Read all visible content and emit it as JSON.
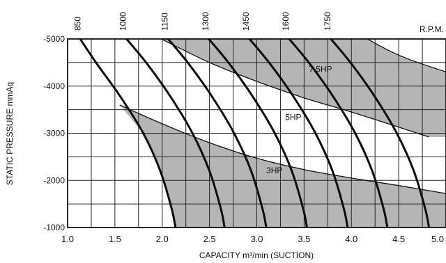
{
  "chart_data": {
    "type": "line",
    "xlabel": "CAPACITY m³/min (SUCTION)",
    "ylabel": "STATIC PRESSURE mmAq",
    "xlim": [
      1.0,
      5.0
    ],
    "ylim": [
      -1000,
      -5000
    ],
    "x_ticks": [
      "1.0",
      "1.5",
      "2.0",
      "2.5",
      "3.0",
      "3.5",
      "4.0",
      "4.5",
      "5.0"
    ],
    "y_ticks": [
      "-5000",
      "-4000",
      "-3000",
      "-2000",
      "-1000"
    ],
    "grid": true,
    "top_axis_label": "R.P.M.",
    "series": [
      {
        "name": "850",
        "x": [
          1.1,
          1.3,
          1.55,
          1.8,
          1.98,
          2.1,
          2.14
        ],
        "y": [
          -5100,
          -4500,
          -3800,
          -3000,
          -2200,
          -1400,
          -1000
        ]
      },
      {
        "name": "1000",
        "x": [
          1.58,
          1.83,
          2.08,
          2.32,
          2.5,
          2.62,
          2.66
        ],
        "y": [
          -5100,
          -4500,
          -3800,
          -3000,
          -2200,
          -1400,
          -1000
        ]
      },
      {
        "name": "1150",
        "x": [
          2.02,
          2.27,
          2.52,
          2.76,
          2.94,
          3.06,
          3.1
        ],
        "y": [
          -5100,
          -4500,
          -3800,
          -3000,
          -2200,
          -1400,
          -1000
        ]
      },
      {
        "name": "1300",
        "x": [
          2.45,
          2.7,
          2.95,
          3.19,
          3.37,
          3.49,
          3.53
        ],
        "y": [
          -5100,
          -4500,
          -3800,
          -3000,
          -2200,
          -1400,
          -1000
        ]
      },
      {
        "name": "1450",
        "x": [
          2.88,
          3.13,
          3.38,
          3.62,
          3.8,
          3.92,
          3.96
        ],
        "y": [
          -5100,
          -4500,
          -3800,
          -3000,
          -2200,
          -1400,
          -1000
        ]
      },
      {
        "name": "1600",
        "x": [
          3.3,
          3.55,
          3.8,
          4.04,
          4.22,
          4.34,
          4.38
        ],
        "y": [
          -5100,
          -4500,
          -3800,
          -3000,
          -2200,
          -1400,
          -1000
        ]
      },
      {
        "name": "1750",
        "x": [
          3.74,
          3.99,
          4.24,
          4.48,
          4.66,
          4.78,
          4.82
        ],
        "y": [
          -5100,
          -4500,
          -3800,
          -3000,
          -2200,
          -1400,
          -1000
        ]
      }
    ],
    "power_curves": [
      {
        "label": "3HP",
        "x": [
          1.55,
          2.0,
          2.5,
          3.0,
          3.5,
          4.0,
          4.5,
          5.0
        ],
        "y": [
          -3600,
          -3200,
          -2800,
          -2470,
          -2230,
          -2050,
          -1890,
          -1720
        ]
      },
      {
        "label": "5HP",
        "x": [
          2.0,
          2.5,
          3.0,
          3.5,
          4.0,
          4.5,
          4.82
        ],
        "y": [
          -4990,
          -4500,
          -4100,
          -3750,
          -3450,
          -3130,
          -2920
        ]
      },
      {
        "label": "7.5HP",
        "x": [
          4.18,
          4.4,
          4.62,
          5.0
        ],
        "y": [
          -4990,
          -4750,
          -4560,
          -4300
        ]
      }
    ]
  }
}
